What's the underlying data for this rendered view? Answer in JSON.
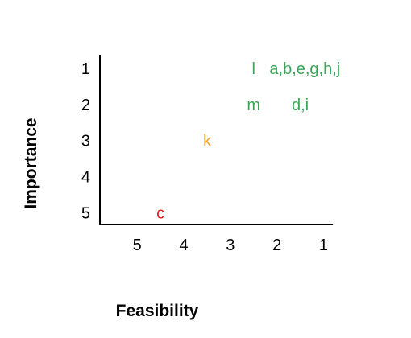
{
  "chart_data": {
    "type": "scatter",
    "title": "",
    "xlabel": "Feasibility",
    "ylabel": "Importance",
    "x_ticks": [
      "5",
      "4",
      "3",
      "2",
      "1"
    ],
    "y_ticks": [
      "1",
      "2",
      "3",
      "4",
      "5"
    ],
    "xlim": [
      5.8,
      0.8
    ],
    "ylim": [
      5.3,
      0.6
    ],
    "x_reversed": true,
    "y_reversed": true,
    "grid": false,
    "points": [
      {
        "label": "a,b,e,g,h,j",
        "x": 1.4,
        "y": 1,
        "color": "#3aa655"
      },
      {
        "label": "l",
        "x": 2.5,
        "y": 1,
        "color": "#3aa655"
      },
      {
        "label": "m",
        "x": 2.5,
        "y": 2,
        "color": "#3aa655"
      },
      {
        "label": "d,i",
        "x": 1.5,
        "y": 2,
        "color": "#3aa655"
      },
      {
        "label": "k",
        "x": 3.5,
        "y": 3,
        "color": "#f0a030"
      },
      {
        "label": "c",
        "x": 4.5,
        "y": 5,
        "color": "#e8211f"
      }
    ]
  }
}
